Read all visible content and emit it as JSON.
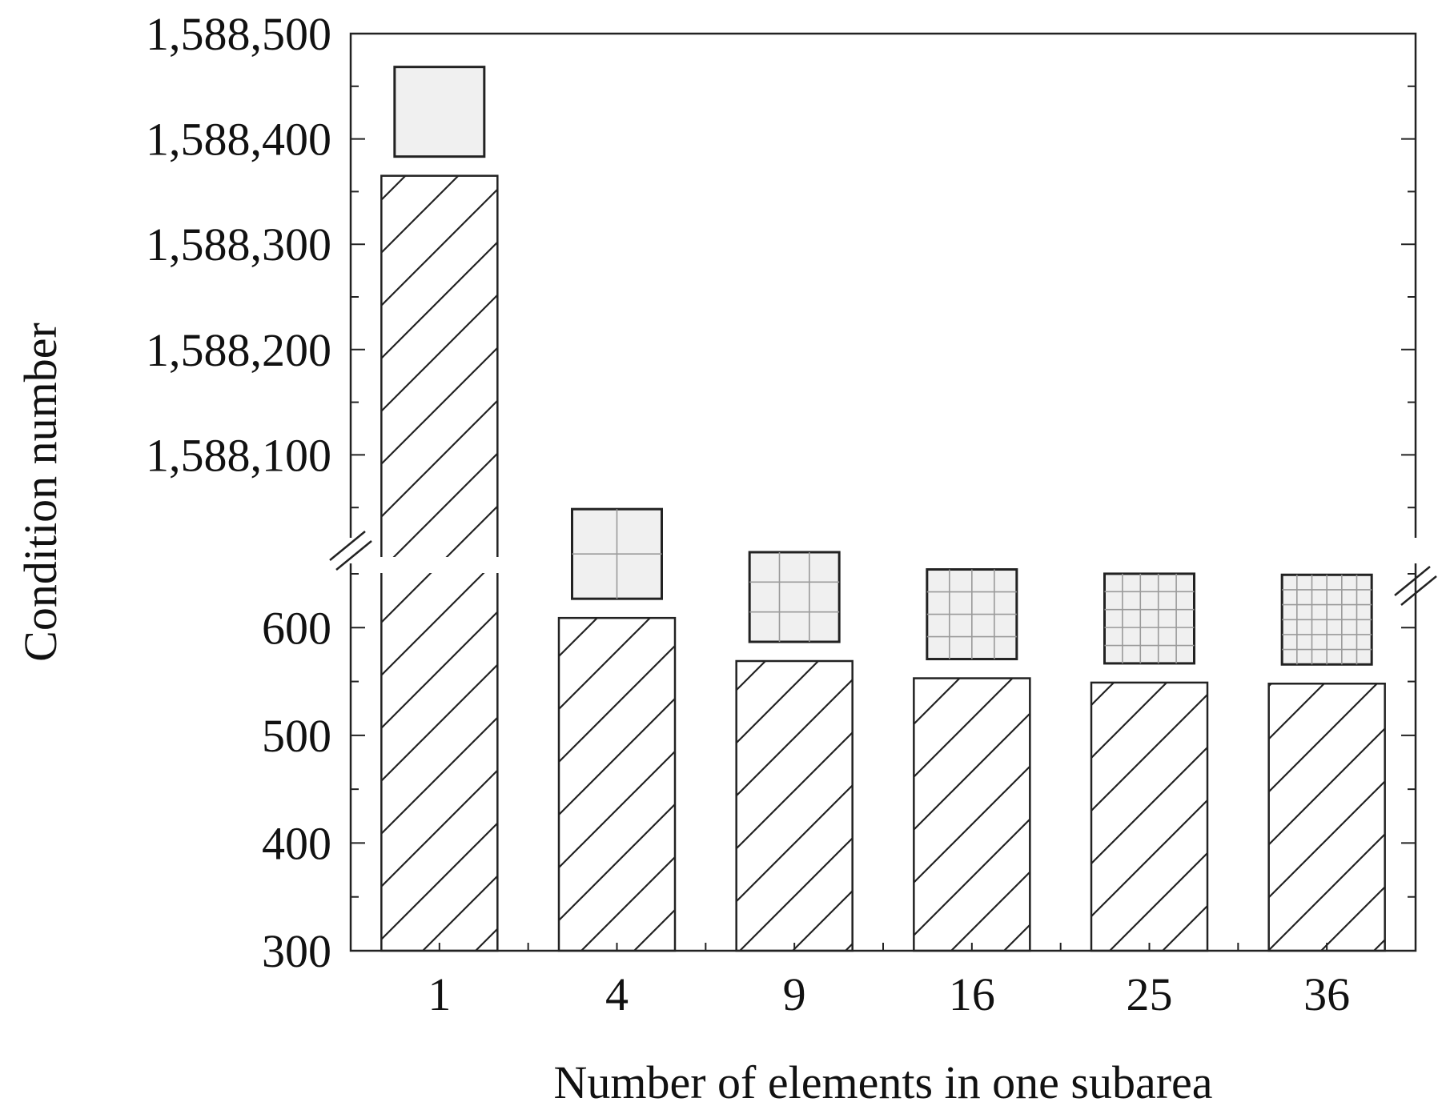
{
  "chart_data": {
    "type": "bar",
    "title": "",
    "xlabel": "Number of elements in one subarea",
    "ylabel": "Condition number",
    "categories": [
      "1",
      "4",
      "9",
      "16",
      "25",
      "36"
    ],
    "values": [
      1588365,
      609,
      569,
      553,
      549,
      548
    ],
    "subarea_grid_divisions": [
      1,
      2,
      3,
      4,
      5,
      6
    ],
    "y_axis_break": true,
    "ylim_lower": [
      300,
      650
    ],
    "ylim_upper": [
      1588000,
      1588500
    ],
    "yticks_lower": [
      "300",
      "400",
      "500",
      "600"
    ],
    "yticks_upper": [
      "1,588,100",
      "1,588,200",
      "1,588,300",
      "1,588,400",
      "1,588,500"
    ],
    "bar_pattern": "diagonal-hatch",
    "grid": false,
    "legend": "none",
    "colors": {
      "bar_fill": "#ffffff",
      "bar_stroke": "#222222",
      "icon_fill": "#f0f0f0",
      "axis": "#222222"
    }
  }
}
